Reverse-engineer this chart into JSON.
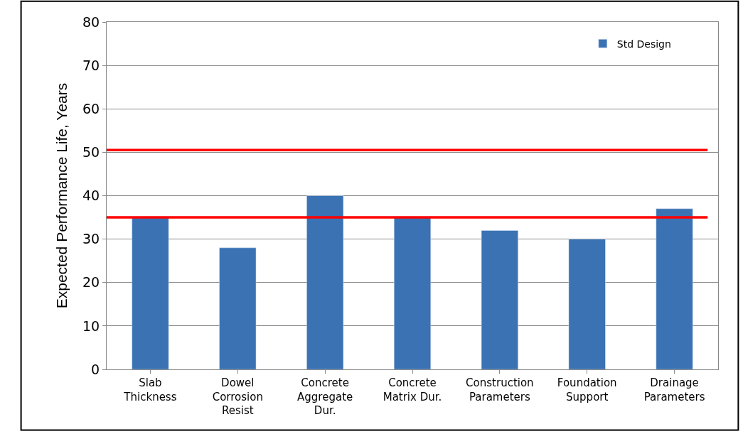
{
  "chart_data": {
    "type": "bar",
    "ylabel": "Expected Performance Life, Years",
    "categories": [
      "Slab\nThickness",
      "Dowel\nCorrosion\nResist",
      "Concrete\nAggregate\nDur.",
      "Concrete\nMatrix Dur.",
      "Construction\nParameters",
      "Foundation\nSupport",
      "Drainage\nParameters"
    ],
    "series": [
      {
        "name": "Std Design",
        "color": "#3a72b4",
        "values": [
          35,
          28,
          40,
          35,
          32,
          30,
          37
        ]
      }
    ],
    "ylim": [
      0,
      80
    ],
    "yticks": [
      0,
      10,
      20,
      30,
      40,
      50,
      60,
      70,
      80
    ],
    "grid": "y",
    "legend": "top right",
    "ref_lines": [
      {
        "axis": "y",
        "value": 50.5,
        "color": "#ff0000"
      },
      {
        "axis": "y",
        "value": 35,
        "color": "#ff0000"
      }
    ]
  }
}
